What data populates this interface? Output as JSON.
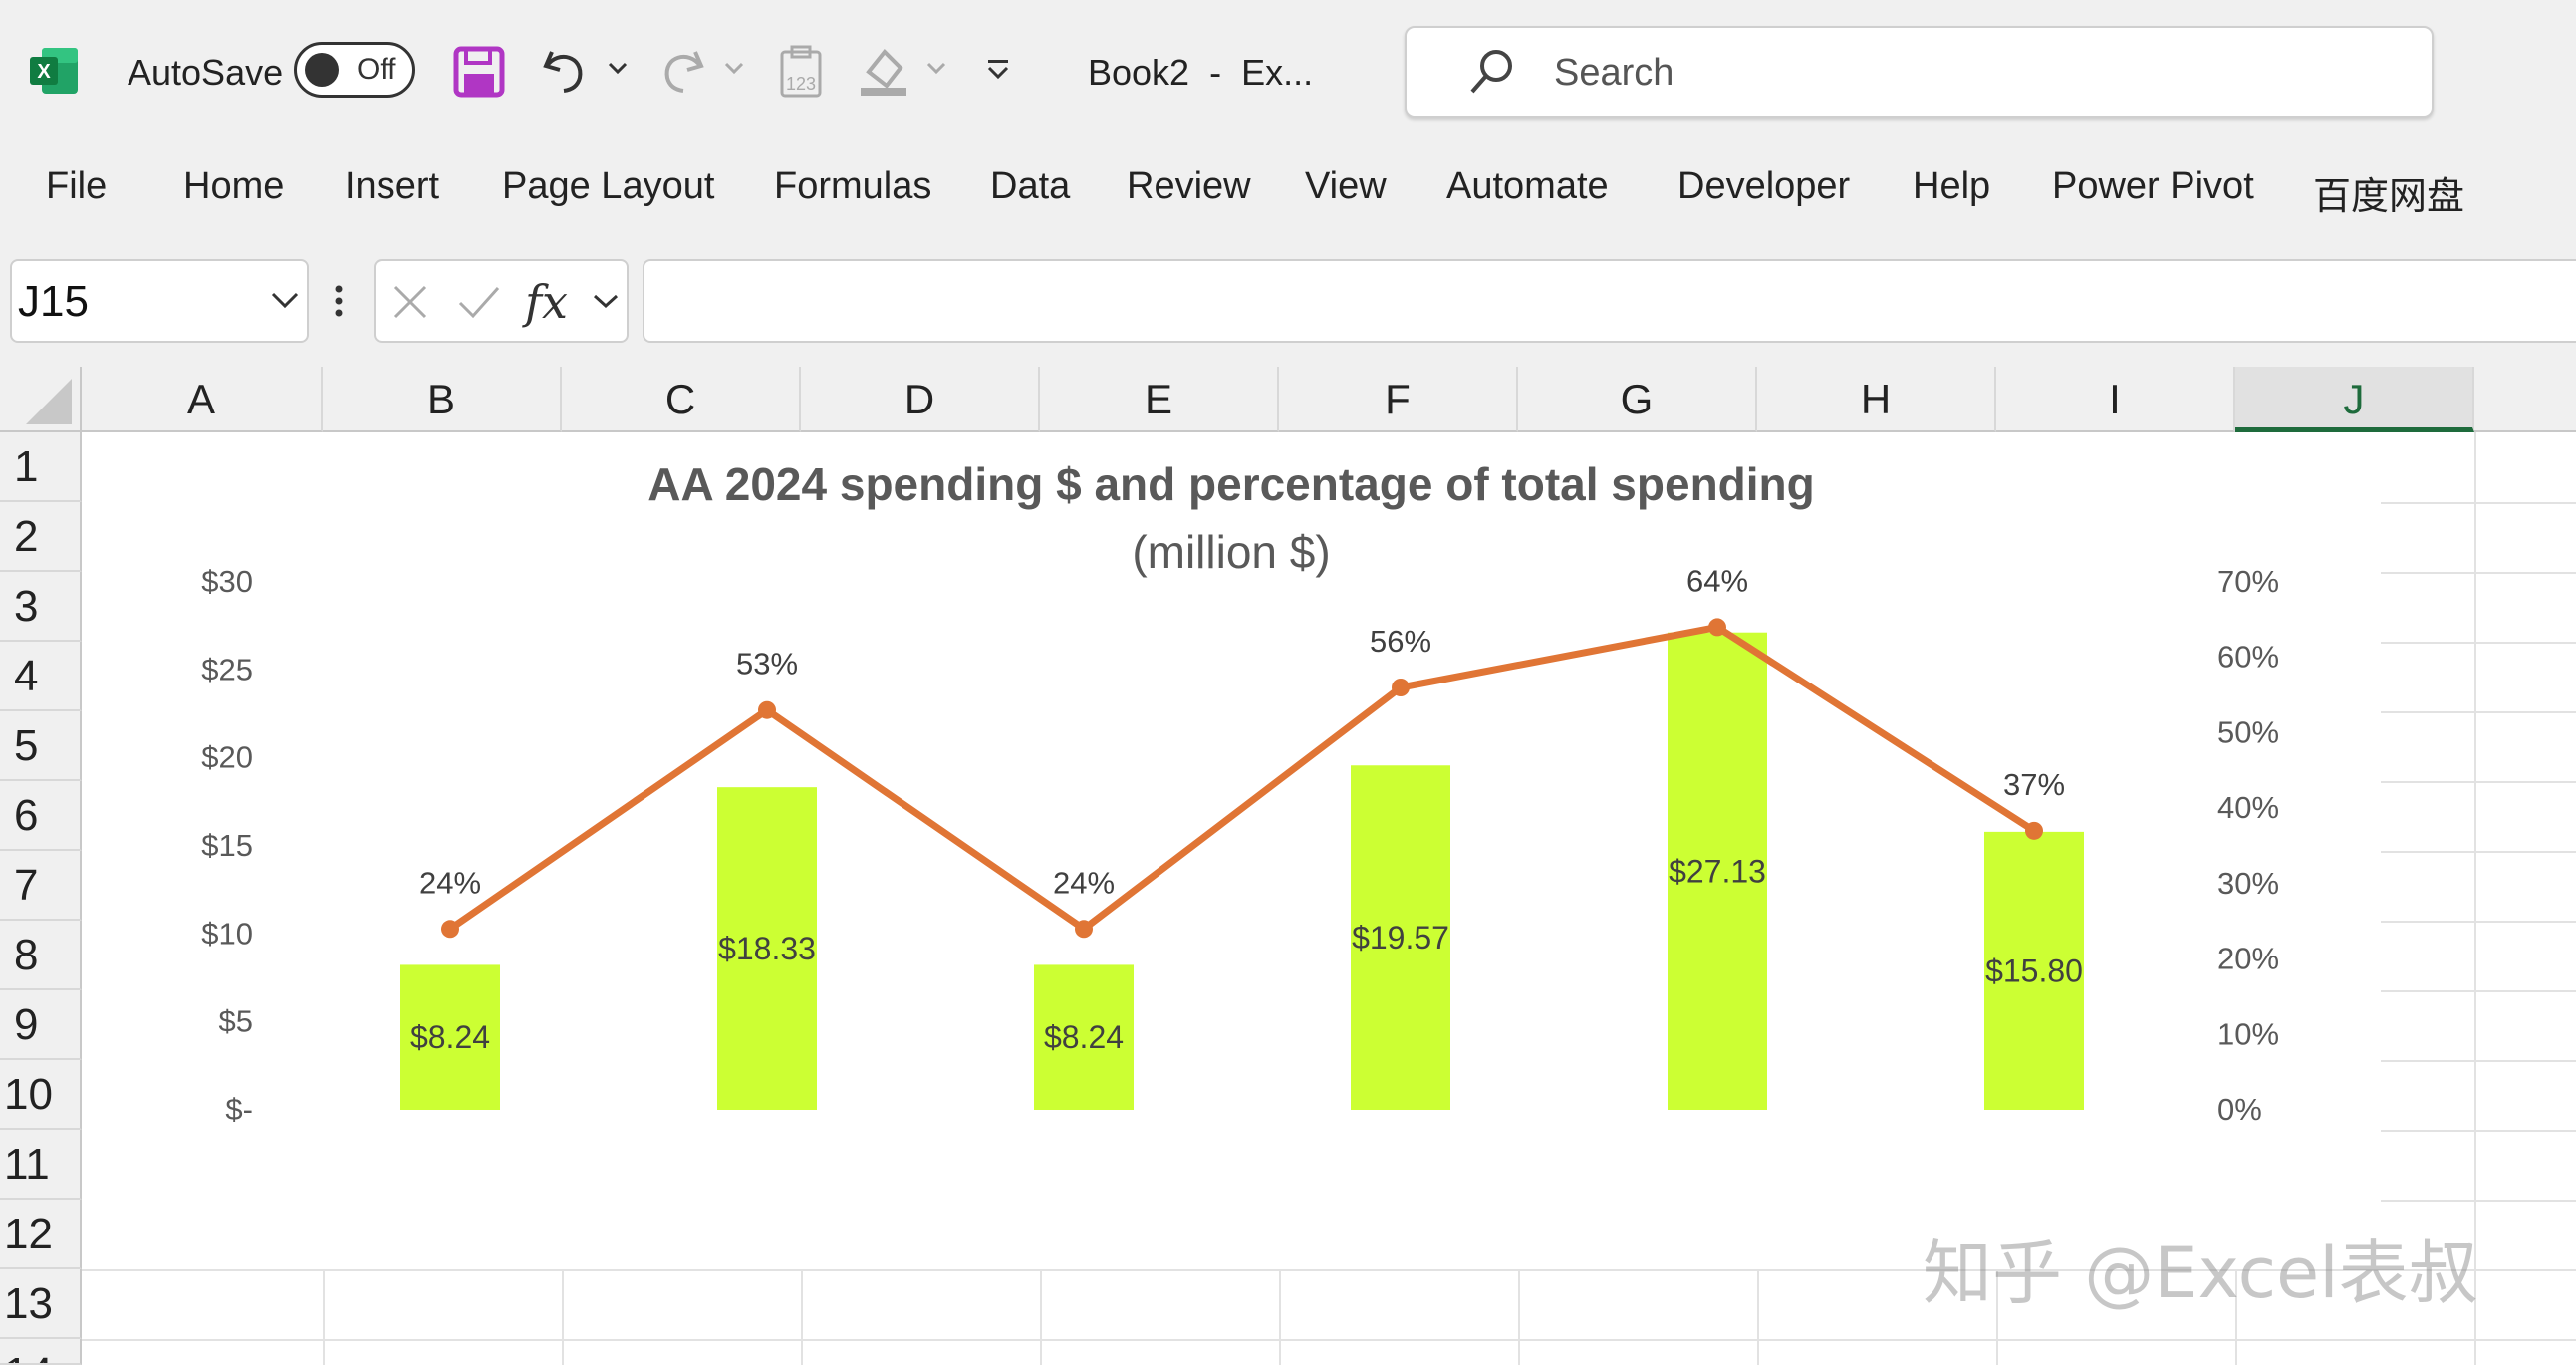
{
  "titlebar": {
    "autosave_label": "AutoSave",
    "autosave_state": "Off",
    "doc_title": "Book2  -  Ex...",
    "search_placeholder": "Search"
  },
  "ribbon_tabs": [
    "File",
    "Home",
    "Insert",
    "Page Layout",
    "Formulas",
    "Data",
    "Review",
    "View",
    "Automate",
    "Developer",
    "Help",
    "Power Pivot",
    "百度网盘"
  ],
  "formula_bar": {
    "name_box": "J15",
    "fx_label": "fx",
    "formula": ""
  },
  "columns": [
    "A",
    "B",
    "C",
    "D",
    "E",
    "F",
    "G",
    "H",
    "I",
    "J"
  ],
  "selected_column": "J",
  "rows": [
    "1",
    "2",
    "3",
    "4",
    "5",
    "6",
    "7",
    "8",
    "9",
    "10",
    "11",
    "12",
    "13",
    "14"
  ],
  "watermark": "知乎 @Excel表叔",
  "colors": {
    "bar": "#ccff33",
    "line": "#e07535",
    "excel_green": "#1e6b3c",
    "save_purple": "#b036c4"
  },
  "chart_data": {
    "type": "bar",
    "title": "AA 2024 spending $ and percentage of total spending",
    "subtitle": "(million $)",
    "categories": [
      "",
      "",
      "",
      "",
      "",
      ""
    ],
    "series": [
      {
        "type": "bar",
        "axis": "left",
        "values": [
          8.24,
          18.33,
          8.24,
          19.57,
          27.13,
          15.8
        ],
        "data_labels": [
          "$8.24",
          "$18.33",
          "$8.24",
          "$19.57",
          "$27.13",
          "$15.80"
        ]
      },
      {
        "type": "line",
        "axis": "right",
        "values": [
          0.24,
          0.53,
          0.24,
          0.56,
          0.64,
          0.37
        ],
        "data_labels": [
          "24%",
          "53%",
          "24%",
          "56%",
          "64%",
          "37%"
        ]
      }
    ],
    "left_axis": {
      "ylim": [
        0,
        30
      ],
      "ticks": [
        "$-",
        "$5",
        "$10",
        "$15",
        "$20",
        "$25",
        "$30"
      ]
    },
    "right_axis": {
      "ylim": [
        0,
        0.7
      ],
      "ticks": [
        "0%",
        "10%",
        "20%",
        "30%",
        "40%",
        "50%",
        "60%",
        "70%"
      ]
    },
    "grid": false,
    "legend": "none"
  }
}
